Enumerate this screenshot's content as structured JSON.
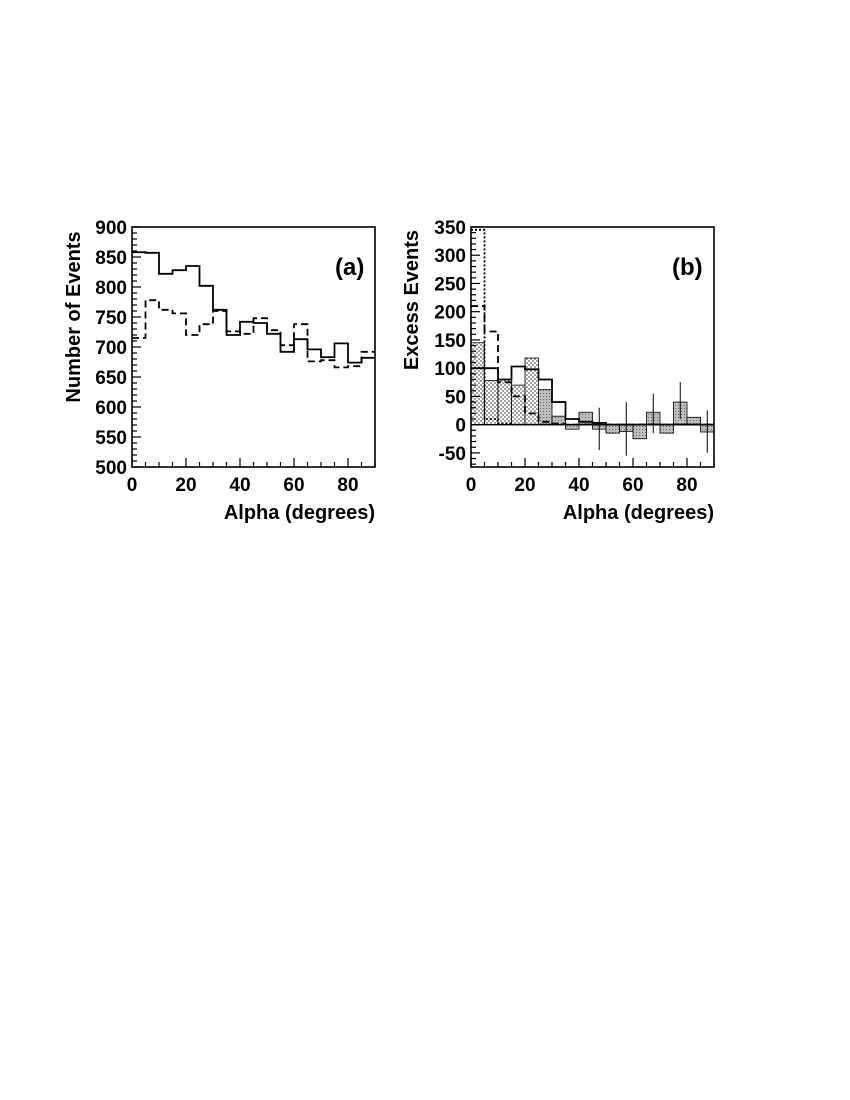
{
  "chart_data": [
    {
      "type": "histogram",
      "panel_label": "(a)",
      "xlabel": "Alpha (degrees)",
      "ylabel": "Number of Events",
      "xlim": [
        0,
        90
      ],
      "ylim": [
        500,
        900
      ],
      "xticks": [
        "0",
        "20",
        "40",
        "60",
        "80"
      ],
      "yticks": [
        "500",
        "550",
        "600",
        "650",
        "700",
        "750",
        "800",
        "850",
        "900"
      ],
      "bin_edges": [
        0,
        5,
        10,
        15,
        20,
        25,
        30,
        35,
        40,
        45,
        50,
        55,
        60,
        65,
        70,
        75,
        80,
        85,
        90
      ],
      "series": [
        {
          "style": "solid",
          "values": [
            858,
            857,
            822,
            828,
            835,
            802,
            762,
            720,
            742,
            740,
            722,
            692,
            713,
            696,
            683,
            706,
            674,
            682
          ]
        },
        {
          "style": "dashed",
          "values": [
            715,
            778,
            762,
            756,
            720,
            738,
            760,
            726,
            722,
            748,
            728,
            703,
            738,
            676,
            678,
            666,
            668,
            692
          ]
        }
      ]
    },
    {
      "type": "histogram",
      "panel_label": "(b)",
      "xlabel": "Alpha (degrees)",
      "ylabel": "Excess Events",
      "xlim": [
        0,
        90
      ],
      "ylim": [
        -75,
        350
      ],
      "xticks": [
        "0",
        "20",
        "40",
        "60",
        "80"
      ],
      "yticks": [
        "-50",
        "0",
        "50",
        "100",
        "150",
        "200",
        "250",
        "300",
        "350"
      ],
      "bin_edges": [
        0,
        5,
        10,
        15,
        20,
        25,
        30,
        35,
        40,
        45,
        50,
        55,
        60,
        65,
        70,
        75,
        80,
        85,
        90
      ],
      "shaded_bars": {
        "style": "filled",
        "values": [
          145,
          78,
          80,
          70,
          118,
          62,
          15,
          -8,
          22,
          -8,
          -15,
          -12,
          -25,
          22,
          -15,
          40,
          13,
          -13
        ]
      },
      "error_bars": {
        "x": [
          47.5,
          57.5,
          67.5,
          77.5,
          87.5
        ],
        "low": [
          -45,
          -55,
          -15,
          10,
          -50
        ],
        "high": [
          30,
          40,
          55,
          75,
          25
        ]
      },
      "series": [
        {
          "style": "solid",
          "values": [
            100,
            100,
            80,
            103,
            98,
            80,
            40,
            10,
            5,
            3,
            0,
            0,
            0,
            0,
            0,
            0,
            0,
            0
          ]
        },
        {
          "style": "dashed",
          "values": [
            210,
            165,
            75,
            50,
            20,
            5,
            2,
            0,
            0,
            0,
            0,
            0,
            0,
            0,
            0,
            0,
            0,
            0
          ]
        },
        {
          "style": "dotted",
          "values": [
            345,
            10,
            2,
            0,
            0,
            0,
            0,
            0,
            0,
            0,
            0,
            0,
            0,
            0,
            0,
            0,
            0,
            0
          ]
        }
      ]
    }
  ]
}
